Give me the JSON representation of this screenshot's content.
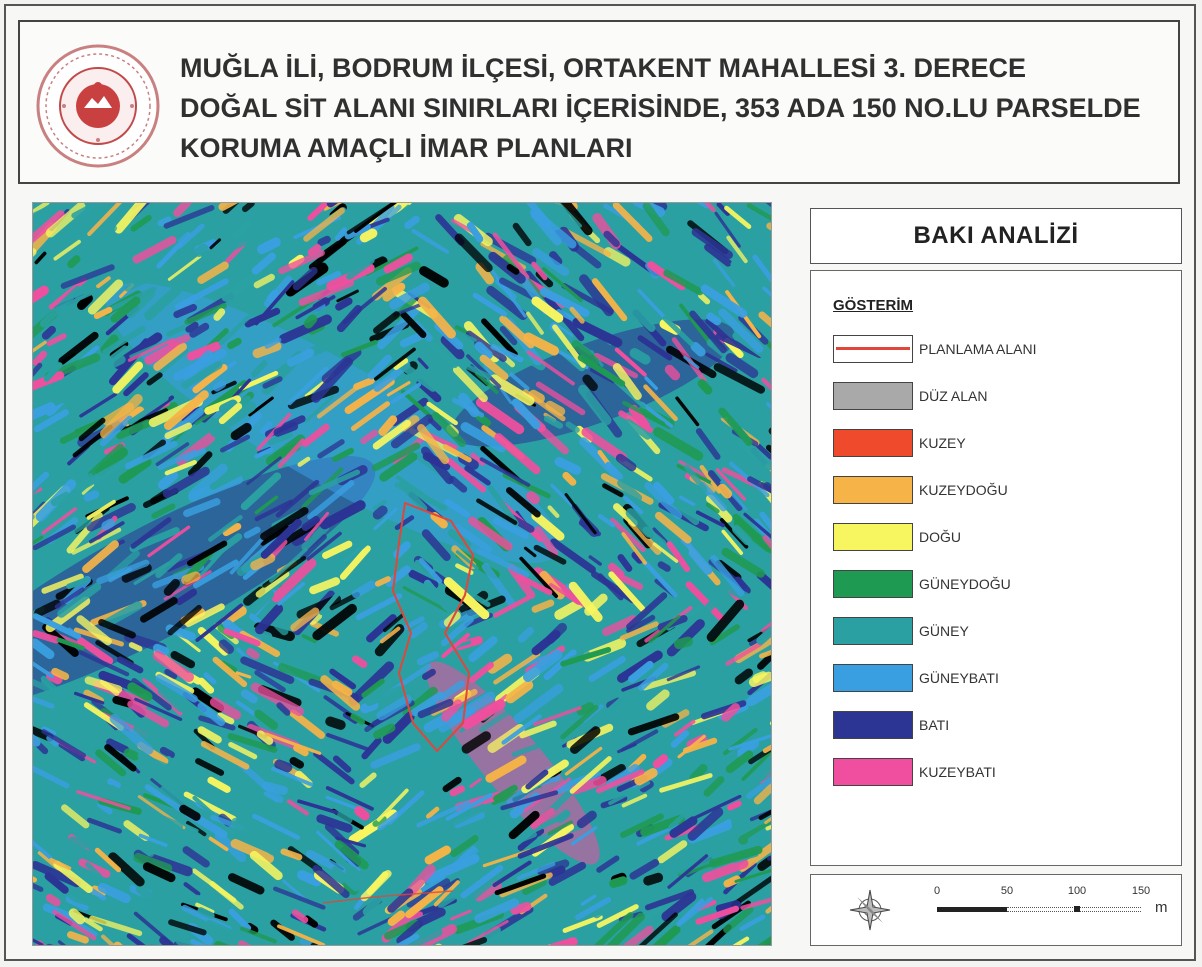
{
  "header": {
    "title_lines": [
      "MUĞLA İLİ, BODRUM İLÇESİ, ORTAKENT MAHALLESİ 3. DERECE",
      "DOĞAL SİT ALANI SINIRLARI İÇERİSİNDE, 353 ADA 150 NO.LU PARSELDE",
      "KORUMA AMAÇLI İMAR PLANLARI"
    ],
    "logo_icon": "ministry-seal-icon"
  },
  "panel": {
    "title": "BAKI ANALİZİ"
  },
  "legend": {
    "heading": "GÖSTERİM",
    "items": [
      {
        "label": "PLANLAMA ALANI",
        "kind": "boundary",
        "color": "#e0463a"
      },
      {
        "label": "DÜZ ALAN",
        "kind": "fill",
        "color": "#a9a9a9"
      },
      {
        "label": "KUZEY",
        "kind": "fill",
        "color": "#f04a2c"
      },
      {
        "label": "KUZEYDOĞU",
        "kind": "fill",
        "color": "#f5b348"
      },
      {
        "label": "DOĞU",
        "kind": "fill",
        "color": "#f7f560"
      },
      {
        "label": "GÜNEYDOĞU",
        "kind": "fill",
        "color": "#1f9a52"
      },
      {
        "label": "GÜNEY",
        "kind": "fill",
        "color": "#2aa0a3"
      },
      {
        "label": "GÜNEYBATI",
        "kind": "fill",
        "color": "#3a9fe0"
      },
      {
        "label": "BATI",
        "kind": "fill",
        "color": "#2c3494"
      },
      {
        "label": "KUZEYBATI",
        "kind": "fill",
        "color": "#ef4f9e"
      }
    ]
  },
  "scale": {
    "ticks": [
      "0",
      "50",
      "100",
      "150"
    ],
    "unit": "m",
    "compass_icon": "north-arrow-compass-icon"
  },
  "map": {
    "base_color": "#2aa0a3",
    "boundary_color": "#e0463a"
  }
}
